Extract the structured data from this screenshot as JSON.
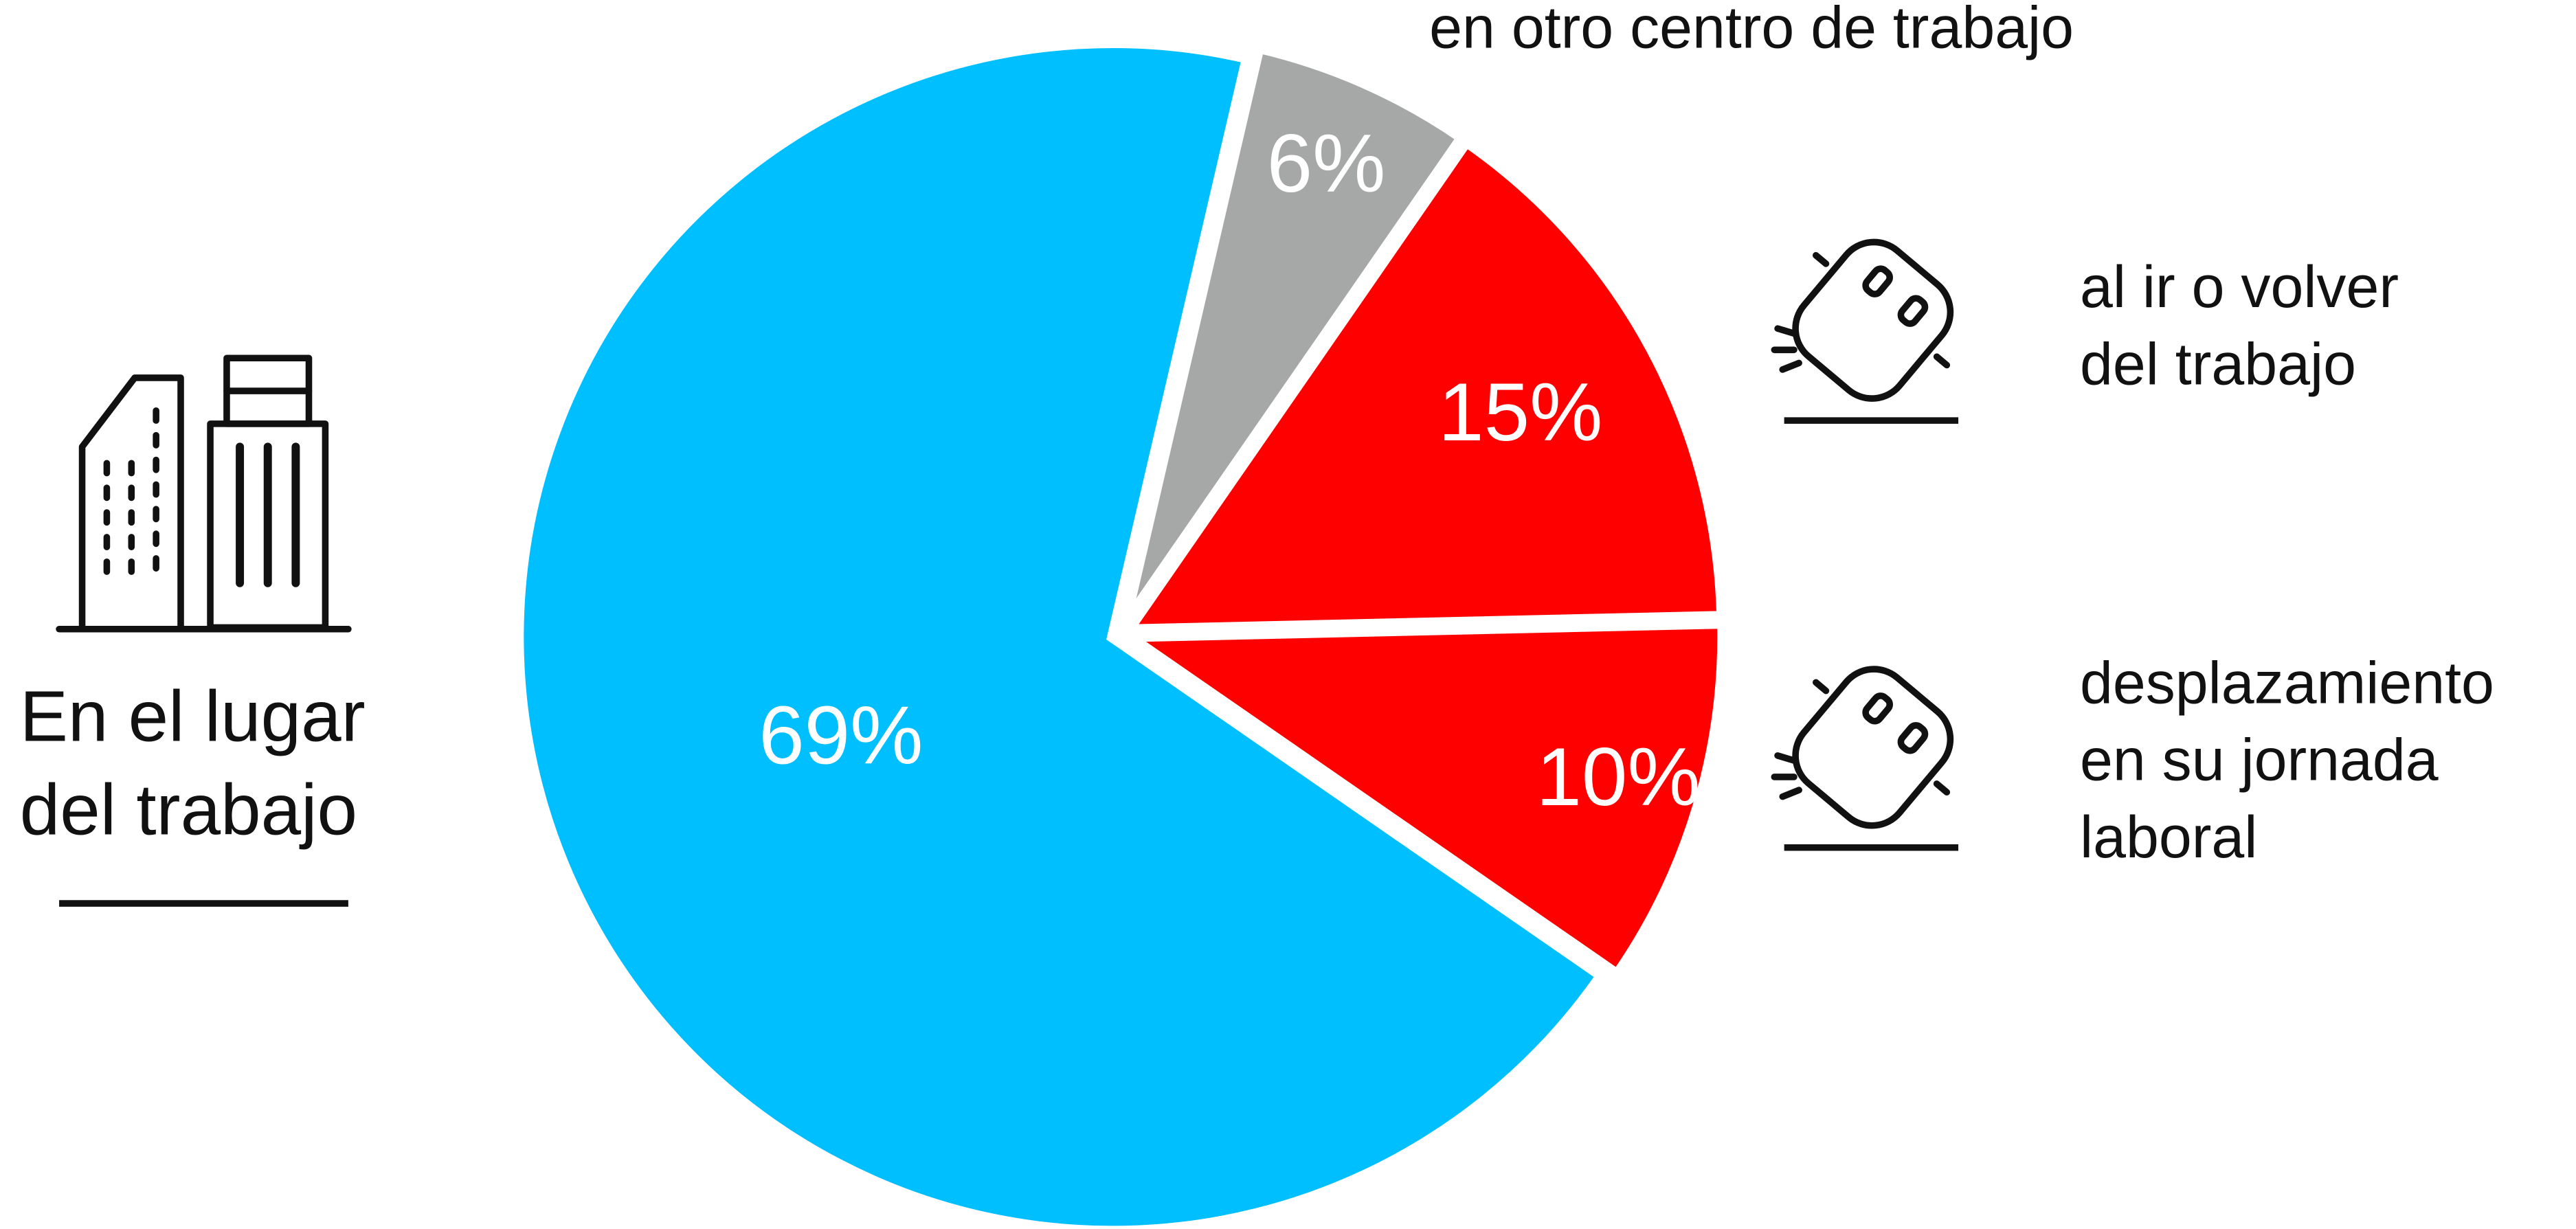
{
  "chart_data": {
    "type": "pie",
    "categories": [
      "En el lugar del trabajo",
      "en otro centro de trabajo",
      "al ir o volver del trabajo",
      "desplazamiento en su jornada laboral"
    ],
    "values": [
      69,
      6,
      15,
      10
    ],
    "value_labels": [
      "69%",
      "6%",
      "15%",
      "10%"
    ],
    "colors": [
      "#00bfff",
      "#a6a8a7",
      "#ff0000",
      "#ff0000"
    ]
  }
}
